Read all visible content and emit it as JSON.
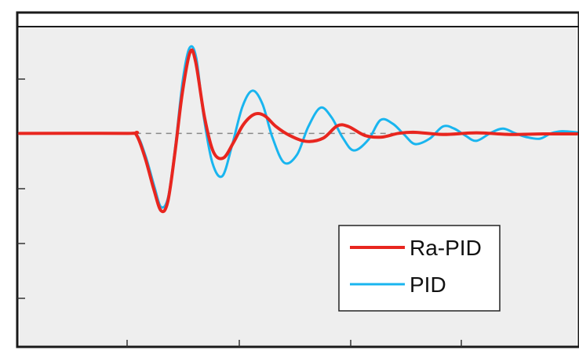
{
  "chart_data": {
    "type": "line",
    "title": "",
    "xlabel": "",
    "ylabel": "",
    "x_range": [
      0,
      100
    ],
    "y_range": [
      -4,
      2
    ],
    "reference_line": {
      "y": 0,
      "style": "dashed",
      "x_start": 20.8,
      "color": "#888888"
    },
    "grid": false,
    "legend": {
      "position": "bottom-right"
    },
    "series": [
      {
        "name": "Ra-PID",
        "color": "#e8261f",
        "points": [
          [
            0,
            0
          ],
          [
            19.2,
            0
          ],
          [
            20.9,
            -0.02
          ],
          [
            22.5,
            -0.45
          ],
          [
            24.1,
            -1.05
          ],
          [
            25.4,
            -1.45
          ],
          [
            26.6,
            -1.28
          ],
          [
            27.9,
            -0.35
          ],
          [
            29.2,
            0.75
          ],
          [
            30.6,
            1.52
          ],
          [
            31.6,
            1.34
          ],
          [
            33.2,
            0.3
          ],
          [
            34.8,
            -0.35
          ],
          [
            36.6,
            -0.46
          ],
          [
            38.4,
            -0.17
          ],
          [
            40.2,
            0.17
          ],
          [
            42.2,
            0.36
          ],
          [
            44.0,
            0.33
          ],
          [
            46.0,
            0.13
          ],
          [
            48.5,
            -0.04
          ],
          [
            51.5,
            -0.15
          ],
          [
            54.5,
            -0.09
          ],
          [
            57.0,
            0.14
          ],
          [
            59.0,
            0.13
          ],
          [
            62.0,
            -0.04
          ],
          [
            65.0,
            -0.07
          ],
          [
            68.0,
            0.0
          ],
          [
            71.0,
            0.02
          ],
          [
            76.0,
            -0.02
          ],
          [
            82.0,
            0.01
          ],
          [
            88.0,
            -0.02
          ],
          [
            94.0,
            -0.01
          ],
          [
            100.0,
            -0.01
          ]
        ]
      },
      {
        "name": "PID",
        "color": "#19b5ef",
        "points": [
          [
            0,
            0
          ],
          [
            19.2,
            0
          ],
          [
            21.0,
            -0.02
          ],
          [
            22.6,
            -0.42
          ],
          [
            24.2,
            -1.0
          ],
          [
            25.4,
            -1.38
          ],
          [
            26.7,
            -1.18
          ],
          [
            28.0,
            -0.2
          ],
          [
            29.3,
            1.0
          ],
          [
            30.5,
            1.6
          ],
          [
            31.7,
            1.42
          ],
          [
            33.0,
            0.35
          ],
          [
            34.6,
            -0.55
          ],
          [
            36.4,
            -0.8
          ],
          [
            38.2,
            -0.2
          ],
          [
            40.0,
            0.5
          ],
          [
            41.8,
            0.8
          ],
          [
            43.6,
            0.55
          ],
          [
            45.4,
            -0.08
          ],
          [
            47.5,
            -0.55
          ],
          [
            49.8,
            -0.4
          ],
          [
            51.8,
            0.12
          ],
          [
            54.0,
            0.48
          ],
          [
            56.0,
            0.3
          ],
          [
            58.0,
            -0.08
          ],
          [
            60.0,
            -0.32
          ],
          [
            62.6,
            -0.12
          ],
          [
            64.8,
            0.25
          ],
          [
            67.0,
            0.18
          ],
          [
            69.0,
            -0.02
          ],
          [
            71.0,
            -0.2
          ],
          [
            73.6,
            -0.1
          ],
          [
            76.0,
            0.13
          ],
          [
            78.0,
            0.09
          ],
          [
            80.0,
            -0.04
          ],
          [
            82.0,
            -0.14
          ],
          [
            84.6,
            0.01
          ],
          [
            86.8,
            0.09
          ],
          [
            89.0,
            0.0
          ],
          [
            91.0,
            -0.07
          ],
          [
            93.4,
            -0.1
          ],
          [
            95.4,
            0.0
          ],
          [
            97.4,
            0.04
          ],
          [
            100.0,
            0.02
          ]
        ]
      }
    ]
  }
}
